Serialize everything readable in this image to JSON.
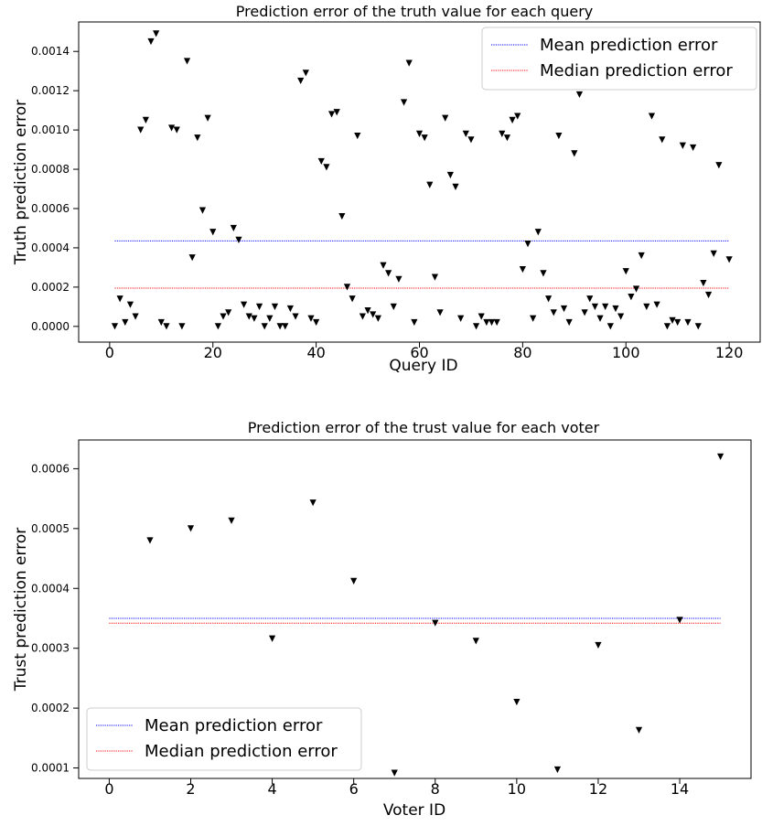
{
  "figure": {
    "charts": [
      {
        "title": "Prediction error of the truth value for each query",
        "xlabel": "Query ID",
        "ylabel": "Truth prediction error",
        "legend": [
          "Mean prediction error",
          "Median prediction error"
        ],
        "xticks": [
          "0",
          "20",
          "40",
          "60",
          "80",
          "100",
          "120"
        ],
        "yticks": [
          "0.0000",
          "0.0002",
          "0.0004",
          "0.0006",
          "0.0008",
          "0.0010",
          "0.0012",
          "0.0014"
        ]
      },
      {
        "title": "Prediction error of the trust value for each voter",
        "xlabel": "Voter ID",
        "ylabel": "Trust prediction error",
        "legend": [
          "Mean prediction error",
          "Median prediction error"
        ],
        "xticks": [
          "0",
          "2",
          "4",
          "6",
          "8",
          "10",
          "12",
          "14"
        ],
        "yticks": [
          "0.0001",
          "0.0002",
          "0.0003",
          "0.0004",
          "0.0005",
          "0.0006"
        ]
      }
    ]
  },
  "chart_data": [
    {
      "type": "scatter",
      "title": "Prediction error of the truth value for each query",
      "xlabel": "Query ID",
      "ylabel": "Truth prediction error",
      "xlim": [
        -6.0,
        126.0
      ],
      "ylim": [
        -8e-05,
        0.00155
      ],
      "legend_position": "top-right",
      "marker": "down-triangle",
      "marker_color": "#000000",
      "series": [
        {
          "x": [
            1,
            2,
            3,
            4,
            5,
            6,
            7,
            8,
            9,
            10,
            11,
            12,
            13,
            14,
            15,
            16,
            17,
            18,
            19,
            20,
            21,
            22,
            23,
            24,
            25,
            26,
            27,
            28,
            29,
            30,
            31,
            32,
            33,
            34,
            35,
            36,
            37,
            38,
            39,
            40,
            41,
            42,
            43,
            44,
            45,
            46,
            47,
            48,
            49,
            50,
            51,
            52,
            53,
            54,
            55,
            56,
            57,
            58,
            59,
            60,
            61,
            62,
            63,
            64,
            65,
            66,
            67,
            68,
            69,
            70,
            71,
            72,
            73,
            74,
            75,
            76,
            77,
            78,
            79,
            80,
            81,
            82,
            83,
            84,
            85,
            86,
            87,
            88,
            89,
            90,
            91,
            92,
            93,
            94,
            95,
            96,
            97,
            98,
            99,
            100,
            101,
            102,
            103,
            104,
            105,
            106,
            107,
            108,
            109,
            110,
            111,
            112,
            113,
            114,
            115,
            116,
            117,
            118,
            119,
            120
          ],
          "y": [
            0.0,
            0.00014,
            2e-05,
            0.00011,
            5e-05,
            0.001,
            0.00105,
            0.00145,
            0.00149,
            2e-05,
            0.0,
            0.00101,
            0.001,
            0.0,
            0.00135,
            0.00035,
            0.00096,
            0.00059,
            0.00106,
            0.00048,
            0.0,
            5e-05,
            7e-05,
            0.0005,
            0.00044,
            0.00011,
            5e-05,
            4e-05,
            0.0001,
            0.0,
            4e-05,
            0.0001,
            0.0,
            0.0,
            9e-05,
            5e-05,
            0.00125,
            0.00129,
            4e-05,
            2e-05,
            0.00084,
            0.00081,
            0.00108,
            0.00109,
            0.00056,
            0.0002,
            0.00014,
            0.00097,
            5e-05,
            8e-05,
            6e-05,
            4e-05,
            0.00031,
            0.00027,
            0.0001,
            0.00024,
            0.00114,
            0.00134,
            2e-05,
            0.00098,
            0.00096,
            0.00072,
            0.00025,
            7e-05,
            0.00106,
            0.00077,
            0.00071,
            4e-05,
            0.00098,
            0.00095,
            0.0,
            5e-05,
            2e-05,
            2e-05,
            2e-05,
            0.00098,
            0.00096,
            0.00105,
            0.00107,
            0.00029,
            0.00042,
            4e-05,
            0.00048,
            0.00027,
            0.00014,
            7e-05,
            0.00097,
            9e-05,
            2e-05,
            0.00088,
            0.00118,
            7e-05,
            0.00014,
            0.0001,
            4e-05,
            0.0001,
            0.0,
            9e-05,
            5e-05,
            0.00028,
            0.00015,
            0.00019,
            0.00036,
            0.0001,
            0.00107,
            0.00011,
            0.00095,
            0.0,
            3e-05,
            2e-05,
            0.00092,
            2e-05,
            0.00091,
            0.0,
            0.00022,
            0.00016,
            0.00037,
            0.00082,
            0.00124,
            0.00034
          ]
        }
      ],
      "lines": [
        {
          "name": "Mean prediction error",
          "y": 0.000435,
          "x_range": [
            1,
            120
          ],
          "color": "#0000ff",
          "style": "dotted"
        },
        {
          "name": "Median prediction error",
          "y": 0.000195,
          "x_range": [
            1,
            120
          ],
          "color": "#ff0000",
          "style": "dotted"
        }
      ]
    },
    {
      "type": "scatter",
      "title": "Prediction error of the trust value for each voter",
      "xlabel": "Voter ID",
      "ylabel": "Trust prediction error",
      "xlim": [
        -0.75,
        15.75
      ],
      "ylim": [
        8.25e-05,
        0.000648
      ],
      "legend_position": "bottom-left",
      "marker": "down-triangle",
      "marker_color": "#000000",
      "series": [
        {
          "x": [
            1,
            2,
            3,
            4,
            5,
            6,
            7,
            8,
            9,
            10,
            11,
            12,
            13,
            14,
            15
          ],
          "y": [
            0.00048,
            0.0005,
            0.000513,
            0.000316,
            0.000543,
            0.000412,
            9.15e-05,
            0.000342,
            0.000312,
            0.00021,
            9.7e-05,
            0.000305,
            0.000163,
            0.000347,
            0.00062
          ]
        }
      ],
      "lines": [
        {
          "name": "Mean prediction error",
          "y": 0.00035,
          "x_range": [
            0,
            15
          ],
          "color": "#0000ff",
          "style": "dotted"
        },
        {
          "name": "Median prediction error",
          "y": 0.000342,
          "x_range": [
            0,
            15
          ],
          "color": "#ff0000",
          "style": "dotted"
        }
      ]
    }
  ]
}
